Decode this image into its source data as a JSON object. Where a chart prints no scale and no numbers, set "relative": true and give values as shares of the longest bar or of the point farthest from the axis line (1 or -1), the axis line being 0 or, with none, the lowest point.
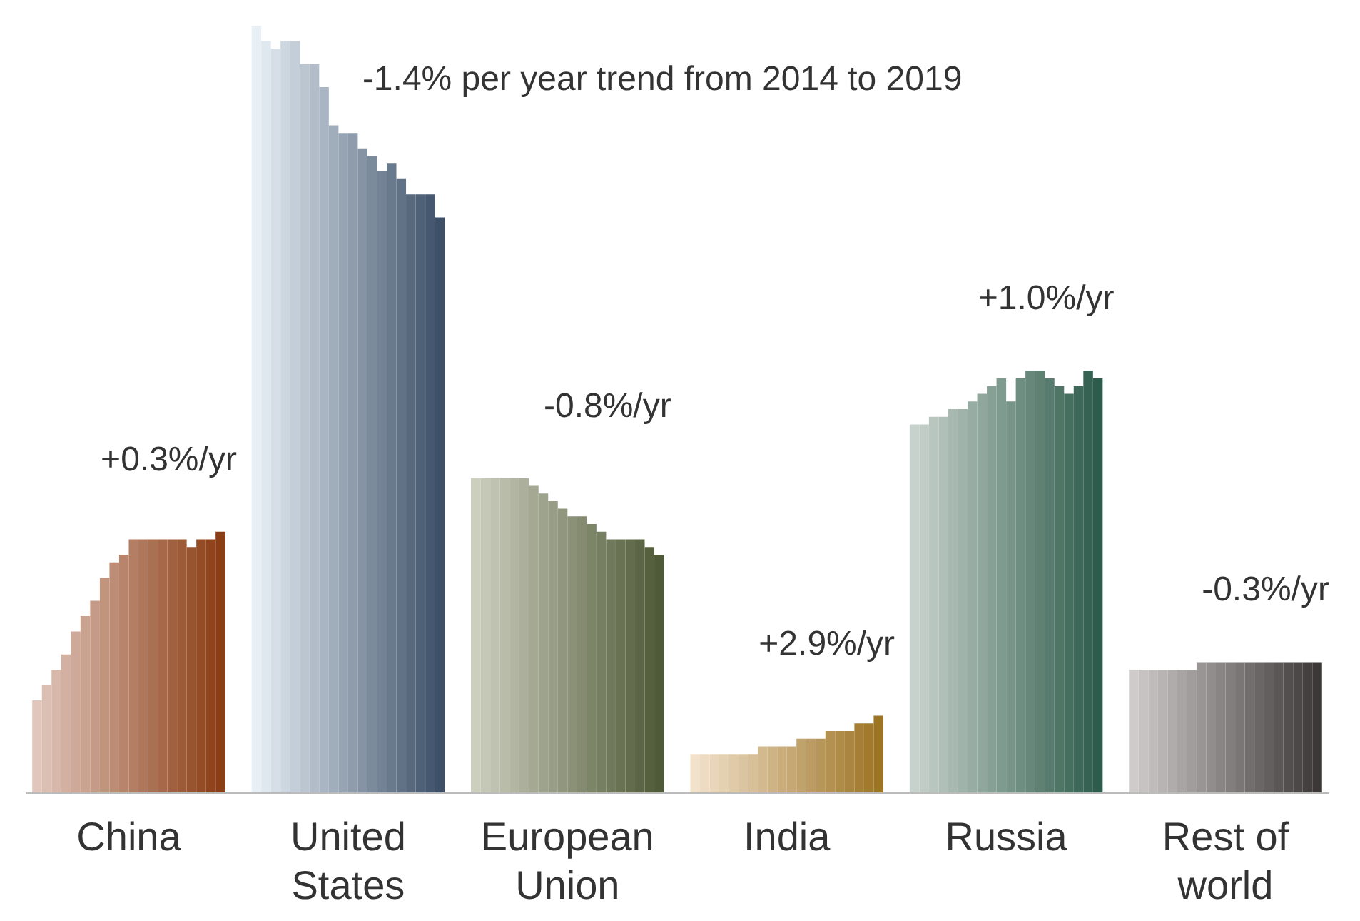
{
  "chart_data": {
    "type": "bar",
    "relative": true,
    "grid": false,
    "categories": [
      "China",
      "United States",
      "European Union",
      "India",
      "Russia",
      "Rest of world"
    ],
    "series": [
      {
        "values": [
          0.12,
          1,
          0.41,
          0.05,
          0.48,
          0.16
        ],
        "colors": [
          "#e0c6bc",
          "#e8f0f6",
          "#cccebe",
          "#f2e2cc",
          "#c8d2cc",
          "#cfcbcb"
        ]
      },
      {
        "values": [
          0.14,
          0.98,
          0.41,
          0.05,
          0.48,
          0.16
        ],
        "colors": [
          "#dcbfb3",
          "#dfe8ef",
          "#c5c8b7",
          "#eddcc3",
          "#c0ccc5",
          "#c7c3c3"
        ]
      },
      {
        "values": [
          0.16,
          0.97,
          0.41,
          0.05,
          0.49,
          0.16
        ],
        "colors": [
          "#d7b8aa",
          "#d6dfe7",
          "#bfc2b0",
          "#e9d6ba",
          "#b8c6bf",
          "#bfbbbb"
        ]
      },
      {
        "values": [
          0.18,
          0.98,
          0.41,
          0.05,
          0.49,
          0.16
        ],
        "colors": [
          "#d3b0a1",
          "#cdd7e0",
          "#b8bca9",
          "#e4d1b1",
          "#b0bfb8",
          "#b8b4b4"
        ]
      },
      {
        "values": [
          0.21,
          0.98,
          0.41,
          0.05,
          0.5,
          0.16
        ],
        "colors": [
          "#cea999",
          "#c4ced8",
          "#b2b6a2",
          "#e0cba9",
          "#a8b9b1",
          "#b0acac"
        ]
      },
      {
        "values": [
          0.23,
          0.95,
          0.41,
          0.05,
          0.5,
          0.16
        ],
        "colors": [
          "#caa290",
          "#bbc6d1",
          "#abaf9b",
          "#dbc5a0",
          "#9fb3aa",
          "#a8a4a4"
        ]
      },
      {
        "values": [
          0.25,
          0.95,
          0.4,
          0.05,
          0.51,
          0.16
        ],
        "colors": [
          "#c59b87",
          "#b2bdc9",
          "#a5a994",
          "#d7bf97",
          "#97ada4",
          "#a19d9d"
        ]
      },
      {
        "values": [
          0.28,
          0.92,
          0.39,
          0.06,
          0.52,
          0.17
        ],
        "colors": [
          "#c1947e",
          "#a9b5c2",
          "#9ea38d",
          "#d2b98e",
          "#8fa79d",
          "#999595"
        ]
      },
      {
        "values": [
          0.3,
          0.87,
          0.38,
          0.06,
          0.53,
          0.17
        ],
        "colors": [
          "#bc8c75",
          "#a0adba",
          "#979d86",
          "#ceb485",
          "#87a096",
          "#918d8d"
        ]
      },
      {
        "values": [
          0.31,
          0.86,
          0.37,
          0.06,
          0.54,
          0.17
        ],
        "colors": [
          "#b8856c",
          "#97a4b3",
          "#91977f",
          "#c9ae7c",
          "#7f9a8f",
          "#898585"
        ]
      },
      {
        "values": [
          0.33,
          0.86,
          0.36,
          0.06,
          0.51,
          0.17
        ],
        "colors": [
          "#b37e64",
          "#8e9cab",
          "#8a9177",
          "#c5a874",
          "#779489",
          "#827e7e"
        ]
      },
      {
        "values": [
          0.33,
          0.84,
          0.36,
          0.07,
          0.54,
          0.17
        ],
        "colors": [
          "#af775b",
          "#8593a4",
          "#848b70",
          "#c0a26b",
          "#6f8e82",
          "#7a7676"
        ]
      },
      {
        "values": [
          0.33,
          0.83,
          0.35,
          0.07,
          0.55,
          0.17
        ],
        "colors": [
          "#aa7052",
          "#7c8b9c",
          "#7d8569",
          "#bc9c62",
          "#67877b",
          "#726e6e"
        ]
      },
      {
        "values": [
          0.33,
          0.81,
          0.34,
          0.07,
          0.55,
          0.17
        ],
        "colors": [
          "#a66849",
          "#738395",
          "#767f62",
          "#b79659",
          "#5f8174",
          "#6a6666"
        ]
      },
      {
        "values": [
          0.33,
          0.82,
          0.33,
          0.08,
          0.54,
          0.17
        ],
        "colors": [
          "#a16140",
          "#6a7a8d",
          "#70795b",
          "#b39150",
          "#577b6e",
          "#635f5f"
        ]
      },
      {
        "values": [
          0.33,
          0.8,
          0.33,
          0.08,
          0.53,
          0.17
        ],
        "colors": [
          "#9d5a37",
          "#617286",
          "#697354",
          "#ae8b47",
          "#4f7567",
          "#5b5757"
        ]
      },
      {
        "values": [
          0.32,
          0.78,
          0.33,
          0.08,
          0.52,
          0.17
        ],
        "colors": [
          "#98532f",
          "#58697e",
          "#636c4d",
          "#aa853f",
          "#466f60",
          "#534f4f"
        ]
      },
      {
        "values": [
          0.33,
          0.78,
          0.33,
          0.09,
          0.53,
          0.17
        ],
        "colors": [
          "#944c26",
          "#4f6177",
          "#5c6646",
          "#a57f36",
          "#3e695a",
          "#4c4848"
        ]
      },
      {
        "values": [
          0.33,
          0.78,
          0.32,
          0.09,
          0.55,
          0.17
        ],
        "colors": [
          "#8f441d",
          "#46586f",
          "#56603f",
          "#a17a2d",
          "#366253",
          "#444040"
        ]
      },
      {
        "values": [
          0.34,
          0.75,
          0.31,
          0.1,
          0.54,
          0.17
        ],
        "colors": [
          "#8b3d14",
          "#3d5068",
          "#4f5a38",
          "#9c7424",
          "#2e5c4c",
          "#3c3838"
        ]
      }
    ],
    "annotations": [
      "+0.3%/yr",
      "-1.4% per year trend from 2014 to 2019",
      "-0.8%/yr",
      "+2.9%/yr",
      "+1.0%/yr",
      "-0.3%/yr"
    ]
  }
}
